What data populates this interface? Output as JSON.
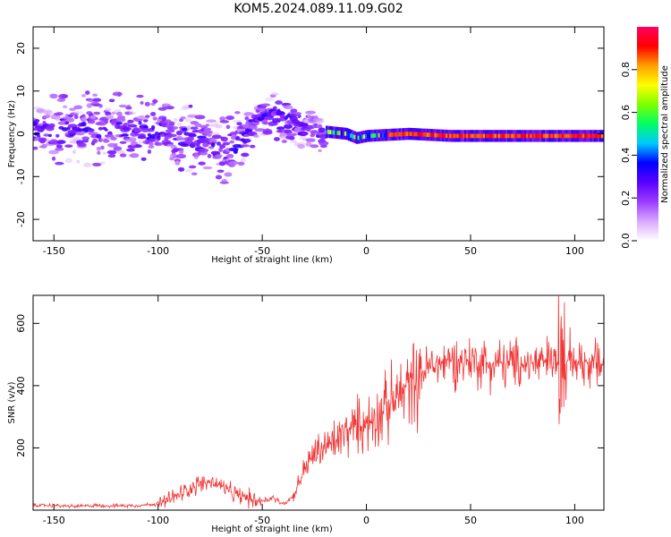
{
  "title": "KOM5.2024.089.11.09.G02",
  "chart_data": [
    {
      "type": "heatmap",
      "xlabel": "Height of straight line (km)",
      "ylabel": "Frequency (Hz)",
      "xlim": [
        -160,
        114
      ],
      "ylim": [
        -25,
        25
      ],
      "xticks": [
        -150,
        -100,
        -50,
        0,
        50,
        100
      ],
      "yticks": [
        -20,
        -10,
        0,
        10,
        20
      ],
      "colorbar": {
        "label": "Normalized spectral amplitude",
        "range": [
          0,
          1
        ],
        "ticks": [
          "0.0",
          "0.2",
          "0.4",
          "0.6",
          "0.8"
        ],
        "colormap": [
          "#ffffff",
          "#d9a8ff",
          "#9b3cff",
          "#5a00ff",
          "#0000ff",
          "#00c8ff",
          "#00ff66",
          "#7cff00",
          "#ffff00",
          "#ffa000",
          "#ff0000",
          "#ff0060"
        ]
      },
      "ridge": {
        "x": [
          -160,
          -140,
          -120,
          -100,
          -85,
          -75,
          -68,
          -60,
          -52,
          -45,
          -40,
          -35,
          -30,
          -25,
          -20,
          -10,
          -5,
          0,
          20,
          40,
          60,
          80,
          100,
          114
        ],
        "y": [
          1.0,
          1.5,
          1.0,
          0.5,
          -1.0,
          -2.5,
          -4.5,
          -1.5,
          3.0,
          5.0,
          2.5,
          2.5,
          1.0,
          0.5,
          0.5,
          0.0,
          -1.0,
          -0.5,
          0.0,
          -0.5,
          -0.5,
          -0.5,
          -0.5,
          -0.5
        ]
      }
    },
    {
      "type": "line",
      "xlabel": "Height of straight line (km)",
      "ylabel": "SNR (v/v)",
      "xlim": [
        -160,
        114
      ],
      "ylim": [
        0,
        690
      ],
      "xticks": [
        -150,
        -100,
        -50,
        0,
        50,
        100
      ],
      "yticks": [
        200,
        400,
        600
      ],
      "series": [
        {
          "color": "#f03434",
          "x": [
            -160,
            -150,
            -140,
            -130,
            -120,
            -110,
            -100,
            -95,
            -90,
            -85,
            -80,
            -75,
            -70,
            -65,
            -60,
            -55,
            -50,
            -45,
            -40,
            -35,
            -30,
            -25,
            -20,
            -15,
            -10,
            -5,
            0,
            10,
            20,
            30,
            40,
            50,
            60,
            70,
            80,
            90,
            95,
            100,
            114
          ],
          "values": [
            15,
            15,
            12,
            15,
            14,
            15,
            20,
            30,
            50,
            70,
            85,
            90,
            80,
            55,
            45,
            35,
            30,
            40,
            20,
            45,
            130,
            180,
            200,
            220,
            250,
            270,
            280,
            330,
            400,
            460,
            480,
            480,
            470,
            470,
            470,
            480,
            480,
            480,
            470
          ]
        }
      ]
    }
  ]
}
